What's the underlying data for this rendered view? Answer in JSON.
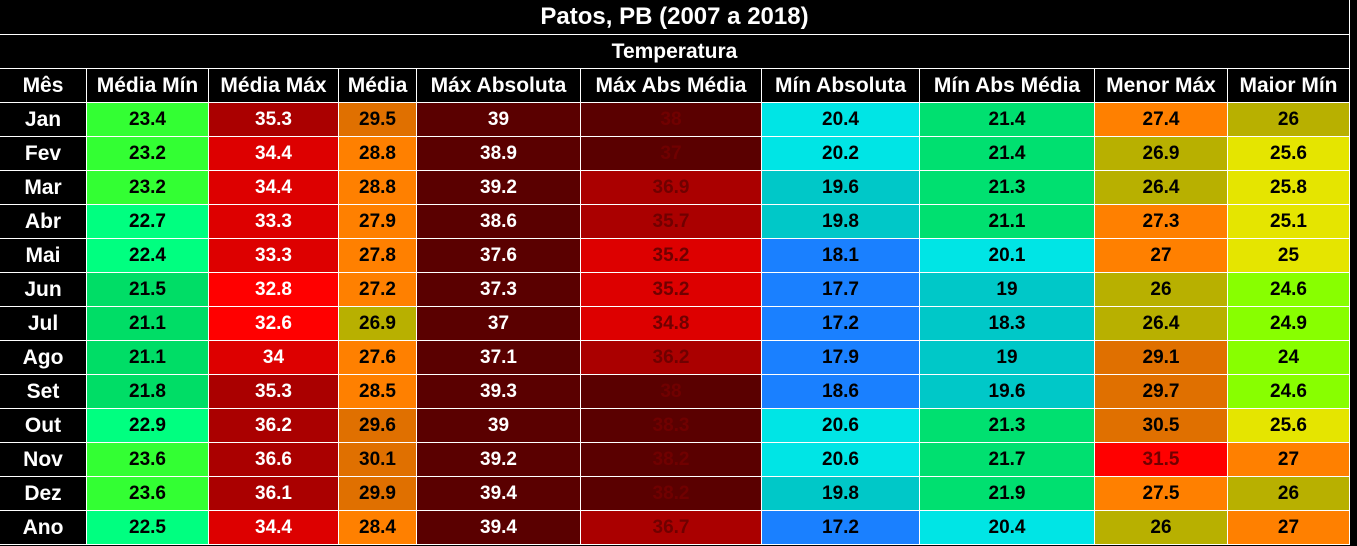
{
  "header": {
    "title": "Patos, PB (2007 a 2018)",
    "subtitle": "Temperatura"
  },
  "table": {
    "columns": [
      "Mês",
      "Média Mín",
      "Média Máx",
      "Média",
      "Máx Absoluta",
      "Máx Abs Média",
      "Mín Absoluta",
      "Mín Abs Média",
      "Menor Máx",
      "Maior Mín"
    ],
    "row_labels": [
      "Jan",
      "Fev",
      "Mar",
      "Abr",
      "Mai",
      "Jun",
      "Jul",
      "Ago",
      "Set",
      "Out",
      "Nov",
      "Dez",
      "Ano"
    ],
    "rows": [
      [
        23.4,
        35.3,
        29.5,
        39,
        38,
        20.4,
        21.4,
        27.4,
        26
      ],
      [
        23.2,
        34.4,
        28.8,
        38.9,
        37,
        20.2,
        21.4,
        26.9,
        25.6
      ],
      [
        23.2,
        34.4,
        28.8,
        39.2,
        36.9,
        19.6,
        21.3,
        26.4,
        25.8
      ],
      [
        22.7,
        33.3,
        27.9,
        38.6,
        35.7,
        19.8,
        21.1,
        27.3,
        25.1
      ],
      [
        22.4,
        33.3,
        27.8,
        37.6,
        35.2,
        18.1,
        20.1,
        27,
        25
      ],
      [
        21.5,
        32.8,
        27.2,
        37.3,
        35.2,
        17.7,
        19,
        26,
        24.6
      ],
      [
        21.1,
        32.6,
        26.9,
        37,
        34.8,
        17.2,
        18.3,
        26.4,
        24.9
      ],
      [
        21.1,
        34,
        27.6,
        37.1,
        36.2,
        17.9,
        19,
        29.1,
        24
      ],
      [
        21.8,
        35.3,
        28.5,
        39.3,
        38,
        18.6,
        19.6,
        29.7,
        24.6
      ],
      [
        22.9,
        36.2,
        29.6,
        39,
        38.3,
        20.6,
        21.3,
        30.5,
        25.6
      ],
      [
        23.6,
        36.6,
        30.1,
        39.2,
        38.2,
        20.6,
        21.7,
        31.5,
        27
      ],
      [
        23.6,
        36.1,
        29.9,
        39.4,
        38.2,
        19.8,
        21.9,
        27.5,
        26
      ],
      [
        22.5,
        34.4,
        28.4,
        39.4,
        36.7,
        17.2,
        20.4,
        26,
        27
      ]
    ],
    "colors": [
      [
        "#33ff33",
        "#aa0000",
        "#e07000",
        "#5a0000",
        "#5a0000",
        "#00e5e5",
        "#00e070",
        "#ff8000",
        "#b8b000"
      ],
      [
        "#33ff33",
        "#dd0000",
        "#ff8000",
        "#5a0000",
        "#5a0000",
        "#00e5e5",
        "#00e070",
        "#b8b000",
        "#e5e500"
      ],
      [
        "#33ff33",
        "#dd0000",
        "#ff8000",
        "#5a0000",
        "#aa0000",
        "#00c8c8",
        "#00e070",
        "#b8b000",
        "#e5e500"
      ],
      [
        "#00ff80",
        "#dd0000",
        "#ff8000",
        "#5a0000",
        "#aa0000",
        "#00c8c8",
        "#00e070",
        "#ff8000",
        "#e5e500"
      ],
      [
        "#00ff80",
        "#dd0000",
        "#ff8000",
        "#5a0000",
        "#dd0000",
        "#1a80ff",
        "#00e5e5",
        "#ff8000",
        "#e5e500"
      ],
      [
        "#00dd66",
        "#ff0000",
        "#ff8000",
        "#5a0000",
        "#dd0000",
        "#1a80ff",
        "#00c8c8",
        "#b8b000",
        "#88ff00"
      ],
      [
        "#00dd66",
        "#ff0000",
        "#b8b000",
        "#5a0000",
        "#dd0000",
        "#1a80ff",
        "#00c8c8",
        "#b8b000",
        "#88ff00"
      ],
      [
        "#00dd66",
        "#dd0000",
        "#ff8000",
        "#5a0000",
        "#aa0000",
        "#1a80ff",
        "#00c8c8",
        "#e07000",
        "#88ff00"
      ],
      [
        "#00dd66",
        "#aa0000",
        "#ff8000",
        "#5a0000",
        "#5a0000",
        "#1a80ff",
        "#00c8c8",
        "#e07000",
        "#88ff00"
      ],
      [
        "#00ff80",
        "#aa0000",
        "#e07000",
        "#5a0000",
        "#5a0000",
        "#00e5e5",
        "#00e070",
        "#e07000",
        "#e5e500"
      ],
      [
        "#33ff33",
        "#aa0000",
        "#e07000",
        "#5a0000",
        "#5a0000",
        "#00e5e5",
        "#00e070",
        "#ff0000",
        "#ff8000"
      ],
      [
        "#33ff33",
        "#aa0000",
        "#e07000",
        "#5a0000",
        "#5a0000",
        "#00c8c8",
        "#00e070",
        "#ff8000",
        "#b8b000"
      ],
      [
        "#00ff80",
        "#dd0000",
        "#ff8000",
        "#5a0000",
        "#aa0000",
        "#1a80ff",
        "#00e5e5",
        "#b8b000",
        "#ff8000"
      ]
    ]
  }
}
